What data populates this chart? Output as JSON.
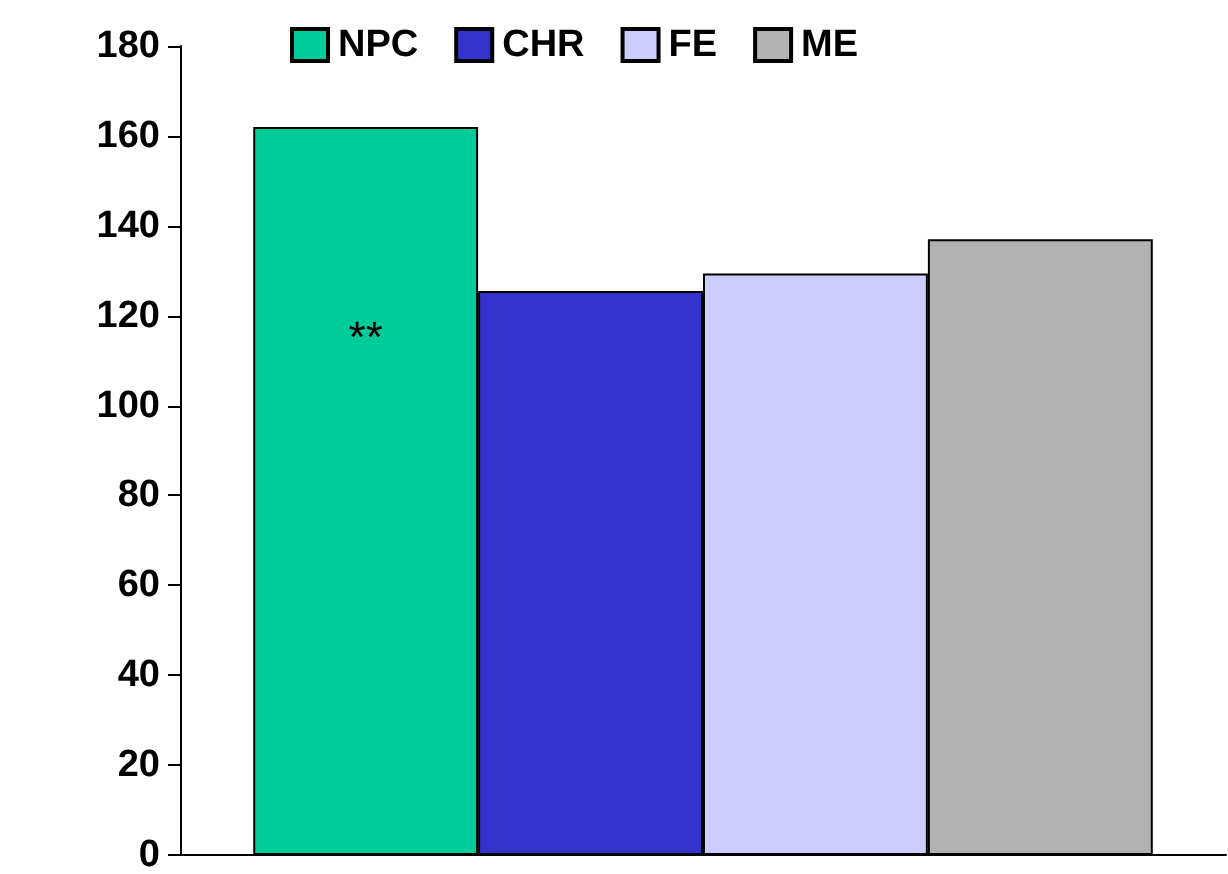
{
  "chart_data": {
    "type": "bar",
    "categories": [
      null
    ],
    "series": [
      {
        "name": "NPC",
        "color": "#00cc99",
        "values": [
          162
        ]
      },
      {
        "name": "CHR",
        "color": "#3333cc",
        "values": [
          125.5
        ]
      },
      {
        "name": "FE",
        "color": "#ccccff",
        "values": [
          129.4
        ]
      },
      {
        "name": "ME",
        "color": "#b2b2b2",
        "values": [
          137
        ]
      }
    ],
    "ylim": [
      0,
      180
    ],
    "yticks": [
      0,
      20,
      40,
      60,
      80,
      100,
      120,
      140,
      160,
      180
    ],
    "grid": false,
    "legend": "top",
    "annotations": [
      "**"
    ]
  }
}
